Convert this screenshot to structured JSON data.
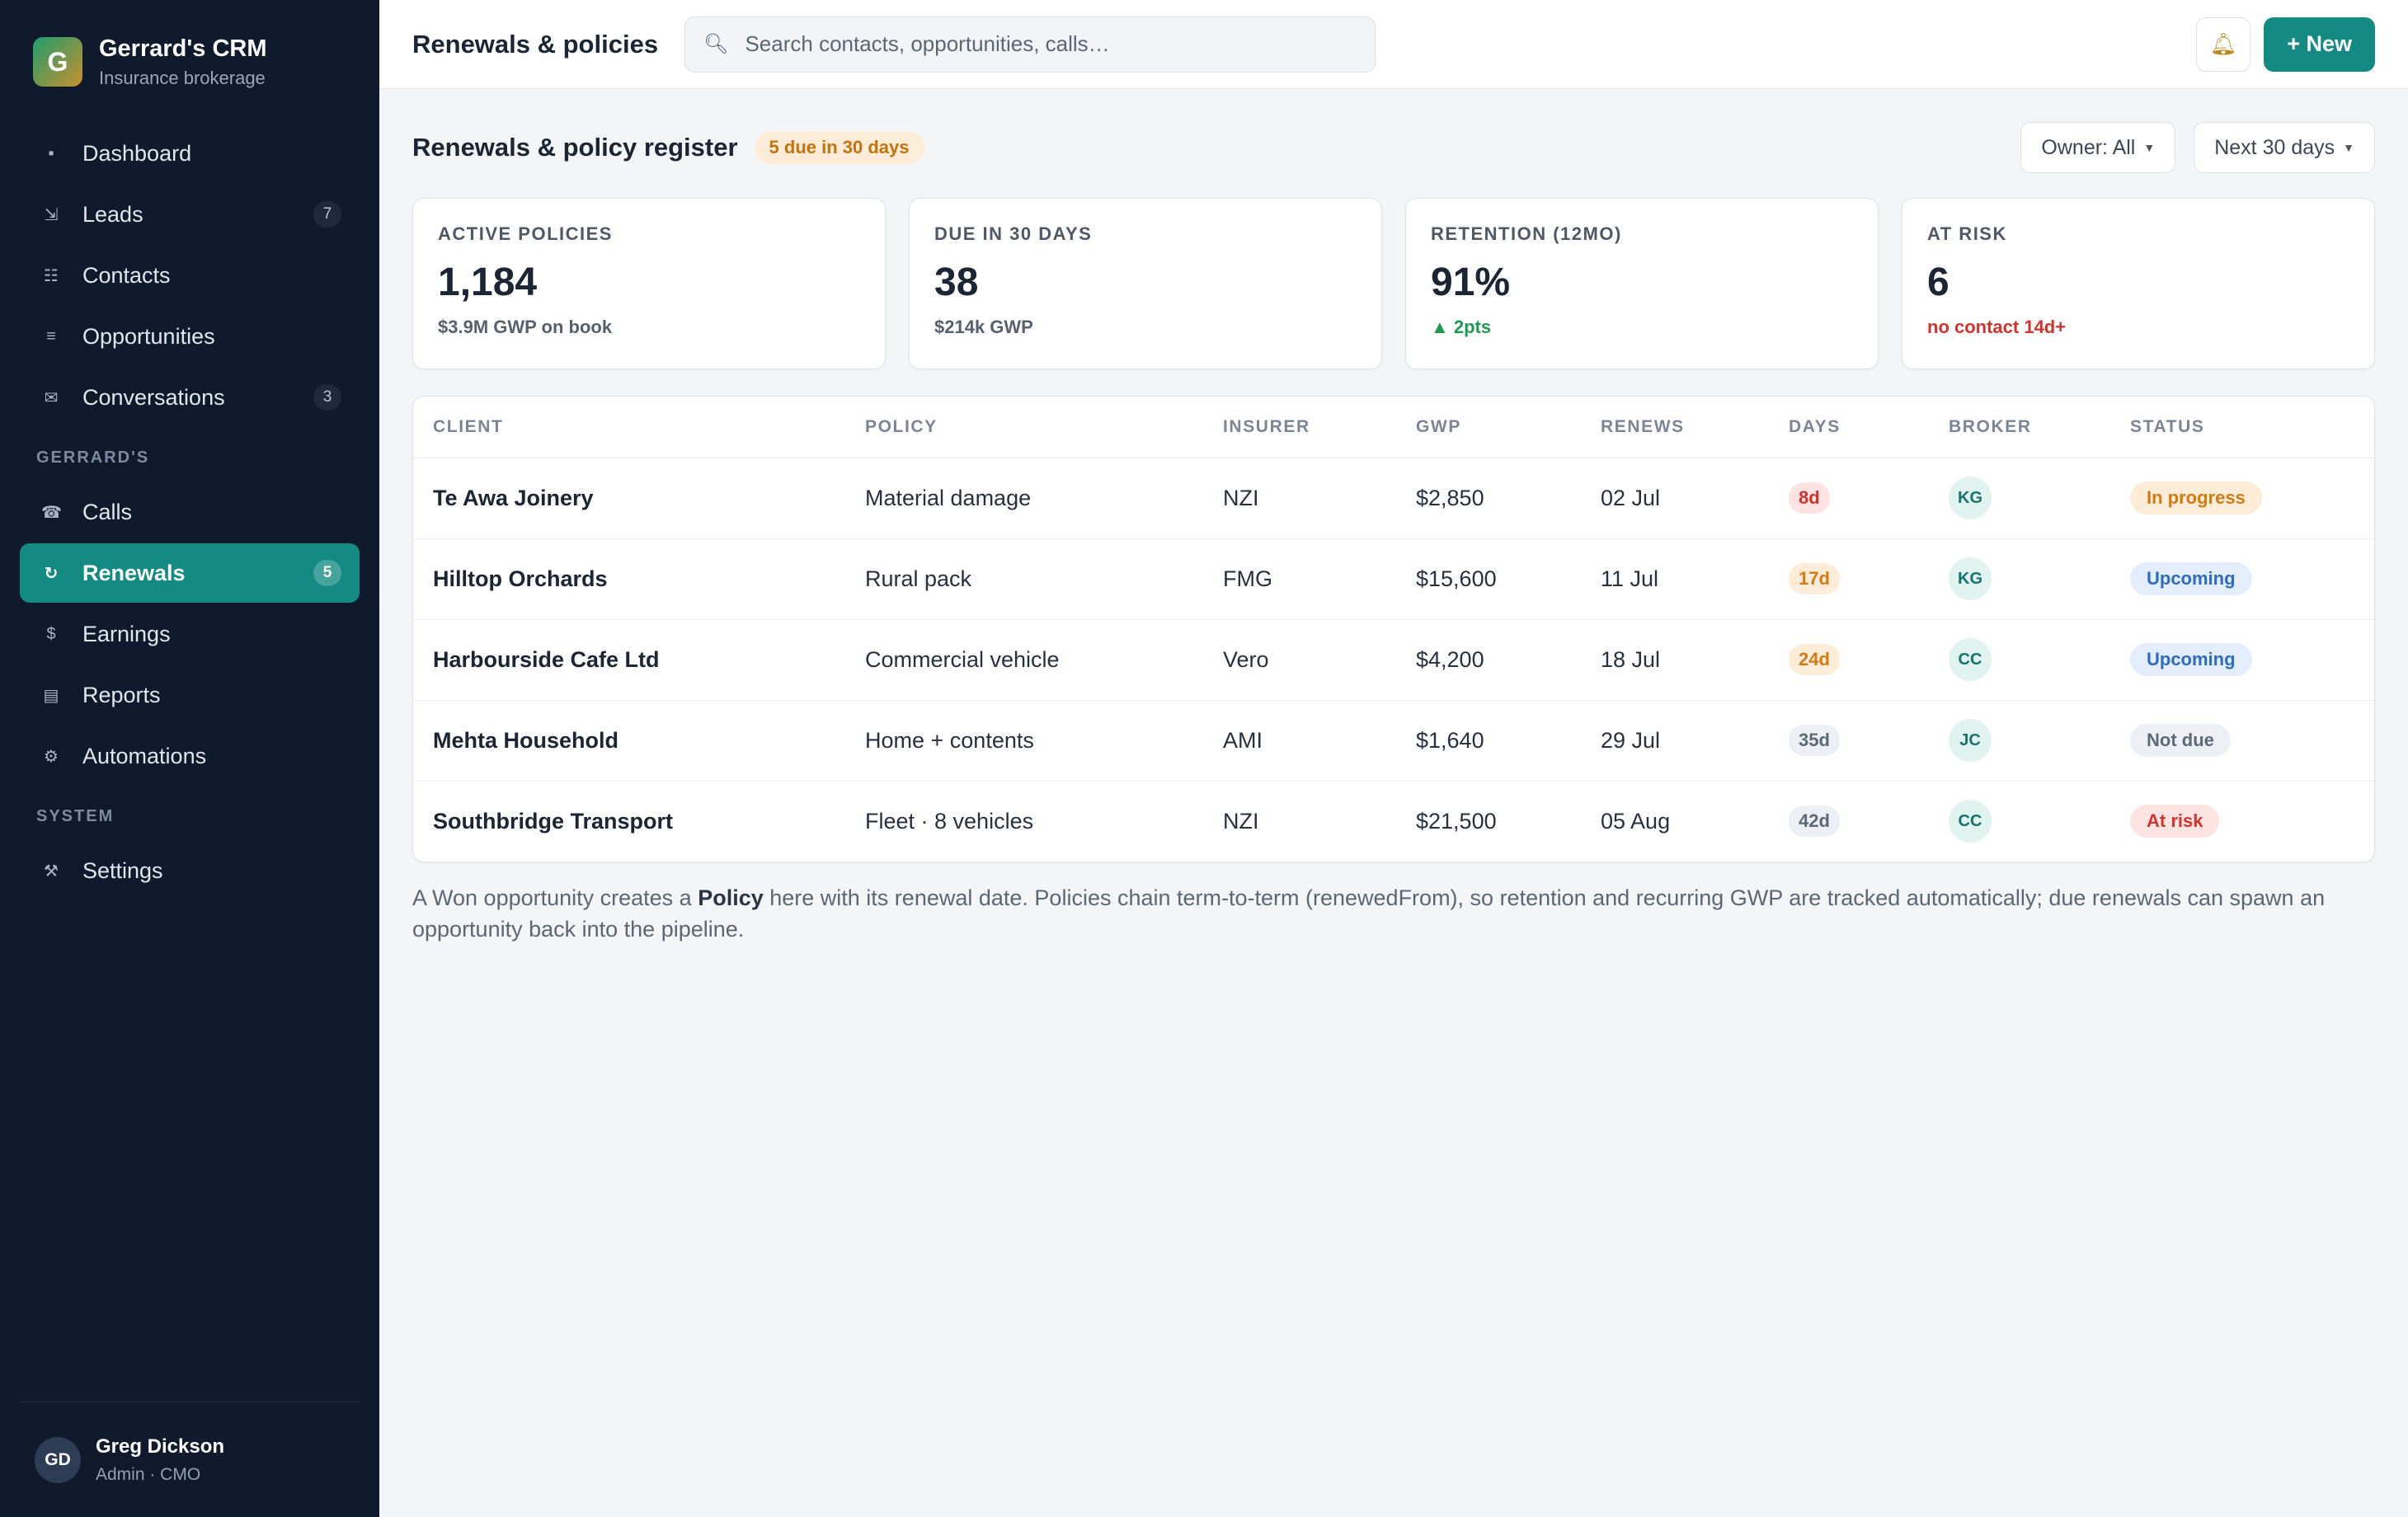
{
  "brand": {
    "logo_letter": "G",
    "name": "Gerrard's CRM",
    "subtitle": "Insurance brokerage"
  },
  "nav": {
    "main": [
      {
        "label": "Dashboard",
        "icon": "dashboard-icon",
        "badge": ""
      },
      {
        "label": "Leads",
        "icon": "leads-icon",
        "badge": "7"
      },
      {
        "label": "Contacts",
        "icon": "contacts-icon",
        "badge": ""
      },
      {
        "label": "Opportunities",
        "icon": "opportunities-icon",
        "badge": ""
      },
      {
        "label": "Conversations",
        "icon": "conversations-icon",
        "badge": "3"
      }
    ],
    "section_gerrards": "GERRARD'S",
    "gerrards": [
      {
        "label": "Calls",
        "icon": "phone-icon",
        "badge": ""
      },
      {
        "label": "Renewals",
        "icon": "renew-icon",
        "badge": "5",
        "active": true
      },
      {
        "label": "Earnings",
        "icon": "dollar-icon",
        "badge": ""
      },
      {
        "label": "Reports",
        "icon": "reports-icon",
        "badge": ""
      },
      {
        "label": "Automations",
        "icon": "gear-icon",
        "badge": ""
      }
    ],
    "section_system": "SYSTEM",
    "system": [
      {
        "label": "Settings",
        "icon": "tools-icon",
        "badge": ""
      }
    ]
  },
  "user": {
    "initials": "GD",
    "name": "Greg Dickson",
    "role": "Admin · CMO"
  },
  "topbar": {
    "title": "Renewals & policies",
    "search_placeholder": "Search contacts, opportunities, calls…",
    "new_label": "+ New"
  },
  "page": {
    "title": "Renewals & policy register",
    "due_badge": "5 due in 30 days",
    "owner_filter": "Owner: All",
    "range_filter": "Next 30 days"
  },
  "kpis": [
    {
      "label": "ACTIVE POLICIES",
      "value": "1,184",
      "sub": "$3.9M GWP on book",
      "tone": ""
    },
    {
      "label": "DUE IN 30 DAYS",
      "value": "38",
      "sub": "$214k GWP",
      "tone": ""
    },
    {
      "label": "RETENTION (12MO)",
      "value": "91%",
      "sub": "▲ 2pts",
      "tone": "green"
    },
    {
      "label": "AT RISK",
      "value": "6",
      "sub": "no contact 14d+",
      "tone": "red"
    }
  ],
  "table": {
    "columns": [
      "CLIENT",
      "POLICY",
      "INSURER",
      "GWP",
      "RENEWS",
      "DAYS",
      "BROKER",
      "STATUS"
    ],
    "rows": [
      {
        "client": "Te Awa Joinery",
        "policy": "Material damage",
        "insurer": "NZI",
        "gwp": "$2,850",
        "renews": "02 Jul",
        "days": "8d",
        "days_tone": "red",
        "broker": "KG",
        "status": "In progress",
        "status_tone": "progress"
      },
      {
        "client": "Hilltop Orchards",
        "policy": "Rural pack",
        "insurer": "FMG",
        "gwp": "$15,600",
        "renews": "11 Jul",
        "days": "17d",
        "days_tone": "amber",
        "broker": "KG",
        "status": "Upcoming",
        "status_tone": "upcoming"
      },
      {
        "client": "Harbourside Cafe Ltd",
        "policy": "Commercial vehicle",
        "insurer": "Vero",
        "gwp": "$4,200",
        "renews": "18 Jul",
        "days": "24d",
        "days_tone": "amber",
        "broker": "CC",
        "status": "Upcoming",
        "status_tone": "upcoming"
      },
      {
        "client": "Mehta Household",
        "policy": "Home + contents",
        "insurer": "AMI",
        "gwp": "$1,640",
        "renews": "29 Jul",
        "days": "35d",
        "days_tone": "grey",
        "broker": "JC",
        "status": "Not due",
        "status_tone": "notdue"
      },
      {
        "client": "Southbridge Transport",
        "policy": "Fleet · 8 vehicles",
        "insurer": "NZI",
        "gwp": "$21,500",
        "renews": "05 Aug",
        "days": "42d",
        "days_tone": "grey",
        "broker": "CC",
        "status": "At risk",
        "status_tone": "risk"
      }
    ]
  },
  "note": {
    "before": "A Won opportunity creates a ",
    "bold": "Policy",
    "after": " here with its renewal date. Policies chain term-to-term (renewedFrom), so retention and recurring GWP are tracked automatically; due renewals can spawn an opportunity back into the pipeline."
  },
  "colors": {
    "accent": "#138a82",
    "sidebar_bg": "#0f1b2d",
    "page_bg": "#f4f5f7"
  }
}
